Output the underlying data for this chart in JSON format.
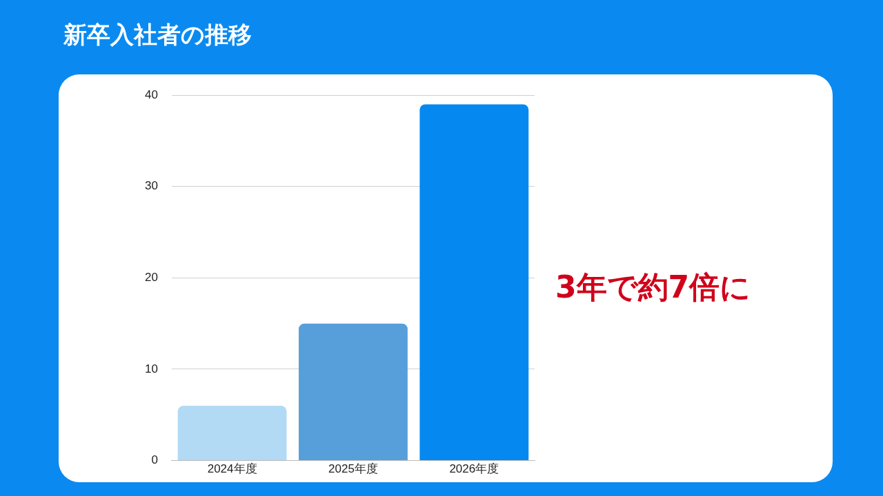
{
  "chart_data": {
    "type": "bar",
    "title": "新卒入社者の推移",
    "categories": [
      "2024年度",
      "2025年度",
      "2026年度"
    ],
    "values": [
      6,
      15,
      39
    ],
    "colors": [
      "#b3daf5",
      "#579fdb",
      "#0588f0"
    ],
    "ylim": [
      0,
      40
    ],
    "yticks": [
      0,
      10,
      20,
      30,
      40
    ],
    "grid": "y",
    "legend": false,
    "annotations": [
      "3年で約7倍に"
    ]
  }
}
